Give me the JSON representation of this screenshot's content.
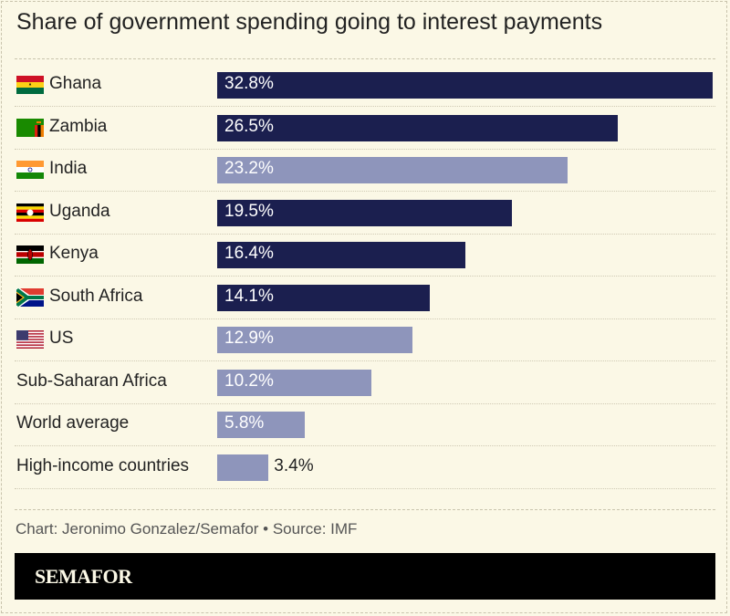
{
  "chart_data": {
    "type": "bar",
    "orientation": "horizontal",
    "title": "Share of government spending going to interest payments",
    "categories": [
      "Ghana",
      "Zambia",
      "India",
      "Uganda",
      "Kenya",
      "South Africa",
      "US",
      "Sub-Saharan Africa",
      "World average",
      "High-income countries"
    ],
    "values": [
      32.8,
      26.5,
      23.2,
      19.5,
      16.4,
      14.1,
      12.9,
      10.2,
      5.8,
      3.4
    ],
    "value_labels": [
      "32.8%",
      "26.5%",
      "23.2%",
      "19.5%",
      "16.4%",
      "14.1%",
      "12.9%",
      "10.2%",
      "5.8%",
      "3.4%"
    ],
    "flags": [
      "ghana-flag",
      "zambia-flag",
      "india-flag",
      "uganda-flag",
      "kenya-flag",
      "south-africa-flag",
      "us-flag",
      null,
      null,
      null
    ],
    "highlight": [
      true,
      true,
      false,
      true,
      true,
      true,
      false,
      false,
      false,
      false
    ],
    "colors": {
      "highlight": "#1b1f4f",
      "other": "#8e95bb",
      "background": "#fbf8e6"
    },
    "xlim": [
      0,
      32.8
    ],
    "grid": false
  },
  "footer": {
    "source": "Chart: Jeronimo Gonzalez/Semafor • Source: IMF",
    "logo": "SEMAFOR"
  }
}
